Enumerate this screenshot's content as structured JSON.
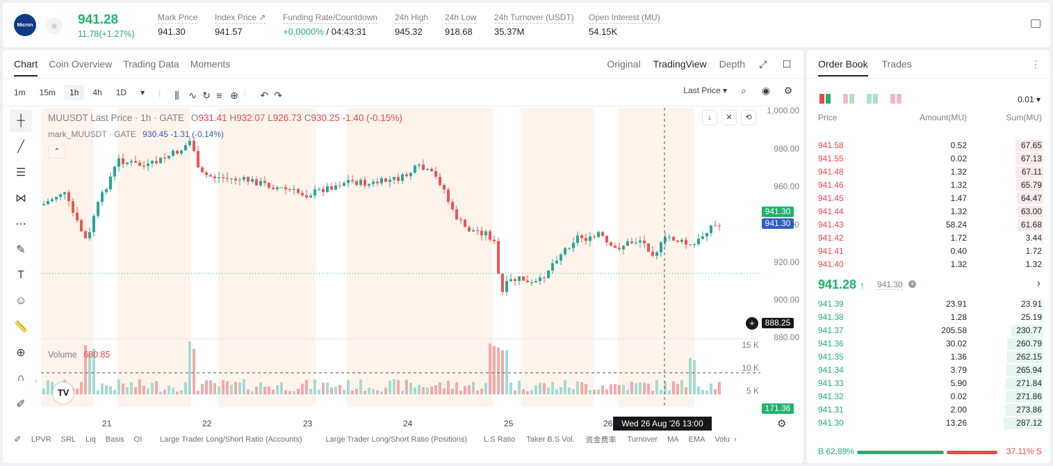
{
  "header": {
    "logo_text": "Micron",
    "last_price": "941.28",
    "change": "11.78(+1.27%)",
    "stats": [
      {
        "label": "Mark Price",
        "value": "941.30"
      },
      {
        "label": "Index Price ↗",
        "value": "941.57"
      },
      {
        "label": "Funding Rate/Countdown",
        "value_green": "+0.0000%",
        "value": " / 04:43:31"
      },
      {
        "label": "24h High",
        "value": "945.32"
      },
      {
        "label": "24h Low",
        "value": "918.68"
      },
      {
        "label": "24h Turnover (USDT)",
        "value": "35.37M"
      },
      {
        "label": "Open Interest (MU)",
        "value": "54.15K"
      }
    ]
  },
  "chart_tabs": [
    "Chart",
    "Coin Overview",
    "Trading Data",
    "Moments"
  ],
  "view_tabs": [
    "Original",
    "TradingView",
    "Depth"
  ],
  "timeframes": [
    "1m",
    "15m",
    "1h",
    "4h",
    "1D"
  ],
  "price_type": "Last Price",
  "legend": {
    "title": "MUUSDT Last Price · 1h · GATE",
    "o_l": "O",
    "o": "931.41",
    "h_l": "H",
    "h": "932.07",
    "l_l": "L",
    "l": "926.73",
    "c_l": "C",
    "c": "930.25",
    "chg": "-1.40 (-0.15%)",
    "mark": "mark_MUUSDT · GATE",
    "mark_v": "930.45",
    "mark_chg": "-1.31 (-0.14%)"
  },
  "volume": {
    "label": "Volume",
    "value": "680.85",
    "vol_tag": "171.36",
    "ticks": [
      "15 K",
      "10 K",
      "5 K"
    ]
  },
  "y_ticks": [
    "1,000.00",
    "980.00",
    "960.00",
    "940.00",
    "920.00",
    "900.00",
    "880.00"
  ],
  "price_tags": {
    "last": "941.30",
    "mark": "941.30",
    "cross": "888.25"
  },
  "x_ticks": [
    "21",
    "22",
    "23",
    "24",
    "25",
    "26"
  ],
  "crosshair_date": "Wed 26 Aug '26   13:00",
  "indicators": [
    "LPVR",
    "SRL",
    "Liq",
    "Basis",
    "OI",
    "Large Trader Long/Short Ratio (Accounts)",
    "Large Trader Long/Short Ratio (Positions)",
    "L.S Ratio",
    "Taker B.S Vol.",
    "资金费率",
    "Turnover",
    "MA",
    "EMA",
    "Volu"
  ],
  "orderbook": {
    "tabs": [
      "Order Book",
      "Trades"
    ],
    "precision": "0.01",
    "headers": [
      "Price",
      "Amount(MU)",
      "Sum(MU)"
    ],
    "asks": [
      [
        "941.58",
        "0.52",
        "67.65"
      ],
      [
        "941.55",
        "0.02",
        "67.13"
      ],
      [
        "941.48",
        "1.32",
        "67.11"
      ],
      [
        "941.46",
        "1.32",
        "65.79"
      ],
      [
        "941.45",
        "1.47",
        "64.47"
      ],
      [
        "941.44",
        "1.32",
        "63.00"
      ],
      [
        "941.43",
        "58.24",
        "61.68"
      ],
      [
        "941.42",
        "1.72",
        "3.44"
      ],
      [
        "941.41",
        "0.40",
        "1.72"
      ],
      [
        "941.40",
        "1.32",
        "1.32"
      ]
    ],
    "mid_price": "941.28",
    "mid_mark": "941.30",
    "bids": [
      [
        "941.39",
        "23.91",
        "23.91"
      ],
      [
        "941.38",
        "1.28",
        "25.19"
      ],
      [
        "941.37",
        "205.58",
        "230.77"
      ],
      [
        "941.36",
        "30.02",
        "260.79"
      ],
      [
        "941.35",
        "1.36",
        "262.15"
      ],
      [
        "941.34",
        "3.79",
        "265.94"
      ],
      [
        "941.33",
        "5.90",
        "271.84"
      ],
      [
        "941.32",
        "0.02",
        "271.86"
      ],
      [
        "941.31",
        "2.00",
        "273.86"
      ],
      [
        "941.30",
        "13.26",
        "287.12"
      ]
    ],
    "ratio_b": "B 62.89%",
    "ratio_s": "37.11% S",
    "buy_ratio": 0.6289
  },
  "colors": {
    "up": "#20b26c",
    "down": "#ef454a"
  }
}
